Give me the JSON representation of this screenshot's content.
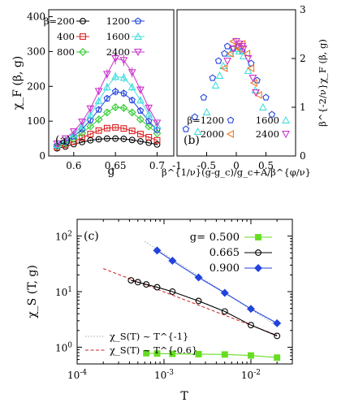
{
  "chart_data": [
    {
      "type": "line",
      "panel_label": "(a)",
      "xlabel": "g",
      "ylabel": "χ_F (β, g)",
      "xlim": [
        0.57,
        0.72
      ],
      "ylim": [
        0,
        420
      ],
      "x_ticks": [
        "0.6",
        "0.65",
        "0.7"
      ],
      "y_ticks": [
        "0",
        "100",
        "200",
        "300",
        "400"
      ],
      "x": [
        0.58,
        0.59,
        0.6,
        0.61,
        0.62,
        0.63,
        0.64,
        0.65,
        0.66,
        0.67,
        0.68,
        0.69,
        0.7
      ],
      "series": [
        {
          "name": "β=200",
          "marker": "circle",
          "color": "#000000",
          "values": [
            22,
            27,
            34,
            40,
            45,
            48,
            50,
            50,
            49,
            46,
            42,
            38,
            33
          ]
        },
        {
          "name": "400",
          "marker": "square",
          "color": "#dd2020",
          "values": [
            25,
            32,
            41,
            52,
            63,
            73,
            80,
            82,
            79,
            72,
            63,
            54,
            45
          ]
        },
        {
          "name": "800",
          "marker": "diamond",
          "color": "#33cc33",
          "values": [
            28,
            37,
            50,
            66,
            85,
            105,
            125,
            140,
            138,
            125,
            105,
            85,
            65
          ]
        },
        {
          "name": "1200",
          "marker": "pentagon",
          "color": "#2244dd",
          "values": [
            30,
            41,
            56,
            77,
            103,
            133,
            165,
            185,
            180,
            160,
            130,
            100,
            75
          ]
        },
        {
          "name": "1600",
          "marker": "triangle-up",
          "color": "#44dddd",
          "values": [
            32,
            45,
            62,
            86,
            118,
            158,
            198,
            228,
            225,
            198,
            160,
            120,
            88
          ]
        },
        {
          "name": "2400",
          "marker": "triangle-down",
          "color": "#cc33cc",
          "values": [
            35,
            50,
            70,
            98,
            136,
            186,
            235,
            280,
            275,
            240,
            190,
            138,
            95
          ]
        }
      ]
    },
    {
      "type": "scatter",
      "panel_label": "(b)",
      "xlabel": "β^{1/ν}(g-g_c)/g_c+A/β^{φ/ν}",
      "ylabel": "β^{-2/ν}χ_F (β, g)",
      "xlim": [
        -1,
        1
      ],
      "ylim": [
        0,
        3
      ],
      "x_ticks": [
        "-1",
        "-0.5",
        "0",
        "0.5"
      ],
      "y_ticks": [
        "0",
        "1",
        "2",
        "3"
      ],
      "series": [
        {
          "name": "β=1200",
          "marker": "pentagon",
          "color": "#2244dd",
          "points": [
            [
              -0.85,
              0.55
            ],
            [
              -0.7,
              0.8
            ],
            [
              -0.55,
              1.2
            ],
            [
              -0.4,
              1.6
            ],
            [
              -0.3,
              1.95
            ],
            [
              -0.2,
              2.1
            ],
            [
              -0.05,
              2.2
            ],
            [
              0.1,
              2.15
            ],
            [
              0.25,
              1.9
            ],
            [
              0.35,
              1.55
            ],
            [
              0.5,
              1.2
            ],
            [
              0.6,
              0.85
            ],
            [
              -0.15,
              2.25
            ],
            [
              0.05,
              2.25
            ]
          ]
        },
        {
          "name": "1600",
          "marker": "triangle-up",
          "color": "#44dddd",
          "points": [
            [
              -0.65,
              0.5
            ],
            [
              -0.5,
              0.9
            ],
            [
              -0.35,
              1.45
            ],
            [
              -0.22,
              1.85
            ],
            [
              -0.1,
              2.1
            ],
            [
              0.0,
              2.2
            ],
            [
              0.12,
              2.05
            ],
            [
              0.2,
              1.75
            ],
            [
              0.32,
              1.35
            ],
            [
              0.45,
              1.0
            ],
            [
              -0.28,
              1.65
            ],
            [
              0.05,
              2.15
            ]
          ]
        },
        {
          "name": "2000",
          "marker": "triangle-left",
          "color": "#ee7722",
          "points": [
            [
              -0.2,
              1.8
            ],
            [
              -0.1,
              2.1
            ],
            [
              0.0,
              2.25
            ],
            [
              0.1,
              2.3
            ],
            [
              0.18,
              2.1
            ],
            [
              0.25,
              1.8
            ],
            [
              0.3,
              1.5
            ],
            [
              0.38,
              1.25
            ],
            [
              -0.05,
              2.35
            ],
            [
              0.05,
              2.2
            ]
          ]
        },
        {
          "name": "2400",
          "marker": "triangle-down",
          "color": "#cc33cc",
          "points": [
            [
              -0.15,
              1.95
            ],
            [
              -0.05,
              2.2
            ],
            [
              0.05,
              2.3
            ],
            [
              0.12,
              2.2
            ],
            [
              0.2,
              2.0
            ],
            [
              0.28,
              1.6
            ],
            [
              0.33,
              1.3
            ],
            [
              0.0,
              2.35
            ],
            [
              0.1,
              2.25
            ]
          ]
        }
      ]
    },
    {
      "type": "line",
      "panel_label": "(c)",
      "xlabel": "T",
      "ylabel": "χ_S (T, g)",
      "xscale": "log",
      "yscale": "log",
      "xlim": [
        0.0001,
        0.03
      ],
      "ylim": [
        0.5,
        200
      ],
      "x_ticks": [
        "10^{-4}",
        "10^{-3}",
        "10^{-2}"
      ],
      "y_ticks": [
        "10^{0}",
        "10^{1}",
        "10^{2}"
      ],
      "legend_title": "g=",
      "series": [
        {
          "name": "0.500",
          "marker": "square-filled",
          "color": "#66dd22",
          "points": [
            [
              0.000625,
              0.78
            ],
            [
              0.000833,
              0.77
            ],
            [
              0.00125,
              0.76
            ],
            [
              0.0025,
              0.75
            ],
            [
              0.005,
              0.74
            ],
            [
              0.01,
              0.71
            ],
            [
              0.02,
              0.65
            ]
          ]
        },
        {
          "name": "0.665",
          "marker": "circle",
          "color": "#000000",
          "points": [
            [
              0.000417,
              16.0
            ],
            [
              0.0005,
              14.8
            ],
            [
              0.000625,
              13.5
            ],
            [
              0.000833,
              12.0
            ],
            [
              0.00125,
              10.0
            ],
            [
              0.0025,
              6.8
            ],
            [
              0.005,
              4.4
            ],
            [
              0.01,
              2.5
            ],
            [
              0.02,
              1.6
            ]
          ]
        },
        {
          "name": "0.900",
          "marker": "diamond-filled",
          "color": "#2244dd",
          "points": [
            [
              0.000833,
              55.0
            ],
            [
              0.00125,
              36.0
            ],
            [
              0.0025,
              18.0
            ],
            [
              0.005,
              9.5
            ],
            [
              0.01,
              4.9
            ],
            [
              0.02,
              2.7
            ]
          ]
        }
      ],
      "guide_lines": [
        {
          "label": "χ_S(T) ~ T^{-1}",
          "color": "#aaaaaa",
          "dash": "dotted",
          "exponent": -1,
          "from": [
            0.0006,
            80.0
          ],
          "to": [
            0.02,
            2.4
          ]
        },
        {
          "label": "χ_S(T) ~ T^{-0.6}",
          "color": "#cc2222",
          "dash": "dashed",
          "exponent": -0.6,
          "from": [
            0.0002,
            26.0
          ],
          "to": [
            0.02,
            1.64
          ]
        }
      ]
    }
  ]
}
